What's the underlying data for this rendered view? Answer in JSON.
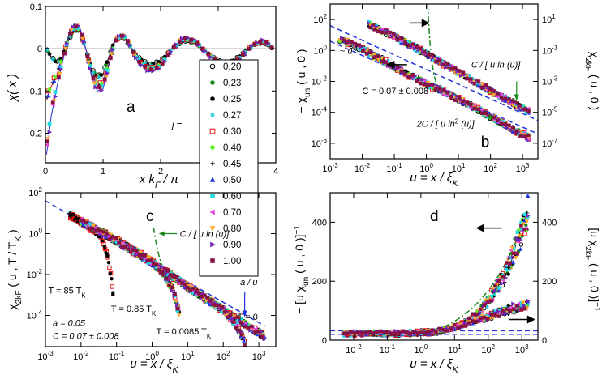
{
  "chart_data": [
    {
      "panel": "a",
      "type": "line",
      "panel_label": "a",
      "xlabel": "x k_F / π",
      "ylabel": "χ( x )",
      "xlim": [
        0,
        4
      ],
      "ylim": [
        -0.27,
        0.1
      ],
      "xticks": [
        "0",
        "1",
        "2",
        "3",
        "4"
      ],
      "yticks": [
        "0.1",
        "0",
        "-0.1",
        "-0.2"
      ],
      "legend_title": "j =",
      "legend": [
        {
          "label": "0.20",
          "color": "#000000",
          "marker": "circle-open"
        },
        {
          "label": "0.23",
          "color": "#1a8a1a",
          "marker": "circle"
        },
        {
          "label": "0.25",
          "color": "#000000",
          "marker": "circle"
        },
        {
          "label": "0.27",
          "color": "#22ccdd",
          "marker": "star"
        },
        {
          "label": "0.30",
          "color": "#ee1111",
          "marker": "square-open"
        },
        {
          "label": "0.40",
          "color": "#66ee22",
          "marker": "diamond"
        },
        {
          "label": "0.45",
          "color": "#000000",
          "marker": "plus"
        },
        {
          "label": "0.50",
          "color": "#2233dd",
          "marker": "triangle-up"
        },
        {
          "label": "0.60",
          "color": "#22dddd",
          "marker": "square"
        },
        {
          "label": "0.70",
          "color": "#ee44dd",
          "marker": "triangle-left"
        },
        {
          "label": "0.80",
          "color": "#ffaa22",
          "marker": "triangle-down"
        },
        {
          "label": "0.90",
          "color": "#7722bb",
          "marker": "triangle-right"
        },
        {
          "label": "1.00",
          "color": "#881144",
          "marker": "square"
        }
      ],
      "series": [
        {
          "name": "j = 0.20",
          "x": [
            0.02,
            0.1,
            0.2,
            0.3,
            0.4,
            0.5,
            0.6,
            0.7,
            0.8,
            0.9,
            1.0,
            1.1,
            1.2,
            1.3,
            1.4,
            1.5,
            1.6,
            1.8,
            2.0,
            2.2,
            2.4,
            2.6,
            2.8,
            3.0,
            3.2,
            3.4,
            3.6,
            3.8,
            3.95
          ],
          "y": [
            0.0,
            -0.02,
            -0.035,
            -0.02,
            0.02,
            0.05,
            0.04,
            0.0,
            -0.05,
            -0.07,
            -0.06,
            -0.02,
            0.02,
            0.03,
            0.02,
            0.0,
            -0.02,
            -0.04,
            -0.03,
            0.0,
            0.02,
            0.015,
            -0.01,
            -0.03,
            -0.035,
            -0.015,
            0.01,
            0.015,
            0.0
          ]
        },
        {
          "name": "j = 0.30",
          "x": [
            0.02,
            0.1,
            0.2,
            0.3,
            0.4,
            0.5,
            0.6,
            0.7,
            0.8,
            0.9,
            1.0,
            1.1,
            1.2,
            1.3,
            1.4,
            1.5,
            1.6,
            1.8,
            2.0,
            2.2,
            2.4,
            2.6,
            2.8,
            3.0,
            3.2,
            3.4,
            3.6,
            3.8,
            3.95
          ],
          "y": [
            -0.12,
            -0.09,
            -0.06,
            -0.02,
            0.03,
            0.058,
            0.045,
            0.0,
            -0.06,
            -0.09,
            -0.085,
            -0.035,
            0.015,
            0.035,
            0.025,
            0.0,
            -0.03,
            -0.05,
            -0.04,
            0.0,
            0.025,
            0.018,
            -0.01,
            -0.035,
            -0.04,
            -0.02,
            0.01,
            0.02,
            0.0
          ]
        },
        {
          "name": "j = 0.50",
          "x": [
            0.02,
            0.1,
            0.2,
            0.3,
            0.4,
            0.5,
            0.6,
            0.7,
            0.8,
            0.9,
            1.0,
            1.1,
            1.2,
            1.3,
            1.4,
            1.5,
            1.6,
            1.8,
            2.0,
            2.2,
            2.4,
            2.6,
            2.8,
            3.0,
            3.2,
            3.4,
            3.6,
            3.8,
            3.95
          ],
          "y": [
            -0.25,
            -0.16,
            -0.09,
            -0.03,
            0.03,
            0.06,
            0.05,
            0.0,
            -0.065,
            -0.1,
            -0.095,
            -0.04,
            0.015,
            0.035,
            0.028,
            0.0,
            -0.03,
            -0.055,
            -0.045,
            0.0,
            0.028,
            0.02,
            -0.01,
            -0.038,
            -0.045,
            -0.02,
            0.01,
            0.022,
            0.0
          ]
        }
      ]
    },
    {
      "panel": "b",
      "type": "scatter",
      "panel_label": "b",
      "xscale": "log",
      "yscale": "log",
      "xlabel": "u = x / ξ_K",
      "ylabel_left": "− χ_un ( u , 0 )",
      "ylabel_right": "χ_2k_F ( u , 0 )",
      "xlim": [
        0.001,
        3000
      ],
      "ylim_left": [
        1e-07,
        1000
      ],
      "ylim_right": [
        1e-08,
        100
      ],
      "xticks": [
        "10-3",
        "10-2",
        "10-1",
        "100",
        "101",
        "102",
        "103"
      ],
      "yticks_left": [
        "102",
        "100",
        "10-2",
        "10-4",
        "10-6"
      ],
      "yticks_right": [
        "101",
        "10-1",
        "10-3",
        "10-5",
        "10-7"
      ],
      "annotations": [
        "~ u-1",
        "C / [ u ln (u)]",
        "C = 0.07 ± 0.008",
        "2C / [ u ln2 (u)]"
      ],
      "series": [
        {
          "name": "−χ_un (left axis)",
          "x": [
            0.002,
            0.005,
            0.01,
            0.05,
            0.1,
            0.5,
            1,
            5,
            10,
            50,
            100,
            500,
            1500
          ],
          "y": [
            5,
            2.5,
            1.2,
            0.2,
            0.08,
            0.014,
            0.007,
            0.0015,
            0.0007,
            0.00012,
            5e-05,
            8e-06,
            2.5e-06
          ]
        },
        {
          "name": "χ_2kF (right axis)",
          "x": [
            0.01,
            0.05,
            0.1,
            0.5,
            1,
            5,
            10,
            50,
            100,
            500,
            1500
          ],
          "y": [
            8,
            1.6,
            0.8,
            0.14,
            0.06,
            0.009,
            0.004,
            0.0006,
            0.00025,
            4e-05,
            1.2e-05
          ]
        }
      ]
    },
    {
      "panel": "c",
      "type": "scatter",
      "panel_label": "c",
      "xscale": "log",
      "yscale": "log",
      "xlabel": "u = x / ξ_K",
      "ylabel": "χ_2k_F ( u , T / T_K )",
      "xlim": [
        0.001,
        3000
      ],
      "ylim": [
        3e-06,
        100
      ],
      "xticks": [
        "10-3",
        "10-2",
        "10-1",
        "100",
        "101",
        "102",
        "103"
      ],
      "yticks": [
        "102",
        "100",
        "10-2",
        "10-4"
      ],
      "annotations": [
        "C / [ u ln (u)]",
        "a / u",
        "T = 85 TK",
        "T = 0.85 TK",
        "T = 0",
        "T = 0.0085 TK",
        "a = 0.05",
        "C = 0.07 ± 0.008"
      ],
      "series": [
        {
          "name": "T = 0",
          "x": [
            0.005,
            0.01,
            0.05,
            0.1,
            0.5,
            1,
            5,
            10,
            50,
            100,
            500,
            1500
          ],
          "y": [
            8,
            4,
            0.9,
            0.45,
            0.09,
            0.04,
            0.006,
            0.0025,
            0.0004,
            0.00018,
            3e-05,
            9e-06
          ]
        },
        {
          "name": "T = 85 TK",
          "x": [
            0.005,
            0.01,
            0.02,
            0.04,
            0.06,
            0.08
          ],
          "y": [
            8,
            4,
            1.8,
            0.5,
            0.05,
            0.0012
          ]
        },
        {
          "name": "T = 0.85 TK",
          "x": [
            0.01,
            0.1,
            1,
            2,
            4,
            6
          ],
          "y": [
            4,
            0.45,
            0.04,
            0.012,
            0.0015,
            0.0001
          ]
        },
        {
          "name": "T = 0.0085 TK",
          "x": [
            0.1,
            1,
            10,
            100,
            200,
            300,
            400
          ],
          "y": [
            0.45,
            0.04,
            0.0025,
            0.00018,
            5e-05,
            1.5e-05,
            5e-06
          ]
        }
      ]
    },
    {
      "panel": "d",
      "type": "scatter",
      "panel_label": "d",
      "xscale": "log",
      "xlabel": "u = x / ξ_K",
      "ylabel_left": "− [u χ_un ( u , 0 )]−1",
      "ylabel_right": "[u χ_2k_F ( u , 0 )]−1",
      "xlim": [
        0.002,
        3000
      ],
      "ylim_left": [
        0,
        500
      ],
      "ylim_right": [
        0,
        500
      ],
      "xticks": [
        "10-2",
        "10-1",
        "100",
        "101",
        "102",
        "103"
      ],
      "yticks_left": [
        "400",
        "200",
        "0"
      ],
      "yticks_right": [
        "400",
        "200",
        "0"
      ],
      "series": [
        {
          "name": "left axis data",
          "x": [
            0.005,
            0.02,
            0.1,
            0.5,
            1,
            3,
            10,
            30,
            100,
            300,
            1000,
            1500
          ],
          "y": [
            20,
            20,
            20,
            21,
            22,
            25,
            40,
            70,
            130,
            220,
            360,
            440
          ]
        },
        {
          "name": "right axis data",
          "x": [
            0.005,
            0.02,
            0.1,
            0.5,
            1,
            3,
            10,
            30,
            100,
            300,
            1000,
            1500
          ],
          "y": [
            25,
            25,
            25,
            26,
            27,
            30,
            45,
            60,
            80,
            100,
            115,
            120
          ]
        }
      ]
    }
  ]
}
